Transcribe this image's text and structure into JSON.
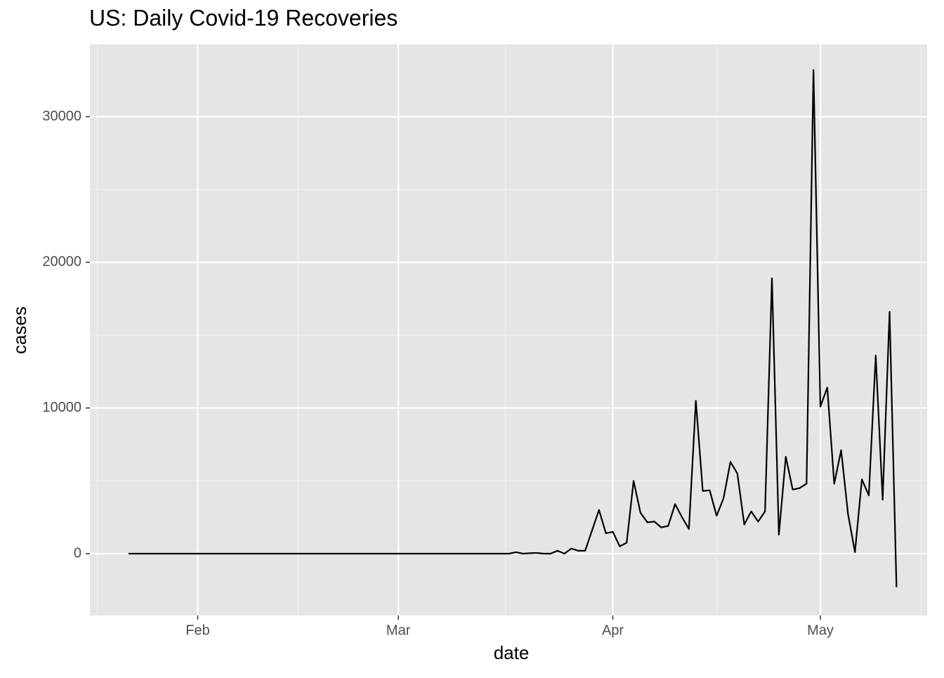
{
  "chart_data": {
    "type": "line",
    "title": "US: Daily Covid-19 Recoveries",
    "x_label": "date",
    "y_label": "cases",
    "categories": [
      null,
      null,
      null,
      null,
      null,
      null,
      null,
      null,
      null,
      null,
      "Feb",
      null,
      null,
      null,
      null,
      null,
      null,
      null,
      null,
      null,
      null,
      null,
      null,
      null,
      null,
      null,
      null,
      null,
      null,
      null,
      null,
      null,
      null,
      null,
      null,
      null,
      null,
      null,
      null,
      "Mar",
      null,
      null,
      null,
      null,
      null,
      null,
      null,
      null,
      null,
      null,
      null,
      null,
      null,
      null,
      null,
      null,
      null,
      null,
      null,
      null,
      null,
      null,
      null,
      null,
      null,
      null,
      null,
      null,
      null,
      null,
      "Apr",
      null,
      null,
      null,
      null,
      null,
      null,
      null,
      null,
      null,
      null,
      null,
      null,
      null,
      null,
      null,
      null,
      null,
      null,
      null,
      null,
      null,
      null,
      null,
      null,
      null,
      null,
      null,
      null,
      null,
      "May",
      null,
      null,
      null,
      null,
      null,
      null,
      null,
      null,
      null,
      null,
      null
    ],
    "series": [
      {
        "name": "cases",
        "color": "#000000",
        "values": [
          0,
          0,
          0,
          0,
          0,
          0,
          0,
          0,
          0,
          0,
          0,
          0,
          0,
          0,
          0,
          0,
          0,
          0,
          0,
          0,
          0,
          0,
          0,
          0,
          0,
          0,
          0,
          0,
          0,
          0,
          0,
          0,
          0,
          0,
          0,
          0,
          0,
          0,
          0,
          0,
          0,
          0,
          0,
          0,
          0,
          0,
          0,
          0,
          0,
          0,
          0,
          0,
          0,
          0,
          0,
          0,
          100,
          0,
          30,
          50,
          0,
          0,
          200,
          0,
          350,
          200,
          200,
          1600,
          3000,
          1400,
          1500,
          500,
          750,
          5000,
          2800,
          2150,
          2200,
          1800,
          1900,
          3400,
          2500,
          1700,
          10500,
          4300,
          4350,
          2600,
          3800,
          6300,
          5500,
          2000,
          2900,
          2200,
          2900,
          18900,
          1300,
          6650,
          4400,
          4500,
          4800,
          33200,
          10100,
          11400,
          4800,
          7100,
          2700,
          100,
          5100,
          4000,
          13600,
          3700,
          16600,
          -2300
        ]
      }
    ],
    "ylim": [
      -4244,
      34968
    ],
    "yticks": [
      0,
      10000,
      20000,
      30000
    ],
    "grid": true
  }
}
